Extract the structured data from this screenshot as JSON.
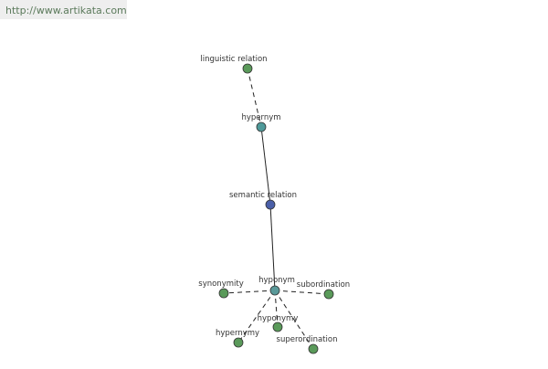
{
  "url": "http://www.artikata.com",
  "nodes": [
    {
      "label": "linguistic relation"
    },
    {
      "label": "hypernym"
    },
    {
      "label": "semantic relation"
    },
    {
      "label": "hyponym"
    },
    {
      "label": "synonymity"
    },
    {
      "label": "subordination"
    },
    {
      "label": "hyponymy"
    },
    {
      "label": "hypernymy"
    },
    {
      "label": "superordination"
    }
  ]
}
